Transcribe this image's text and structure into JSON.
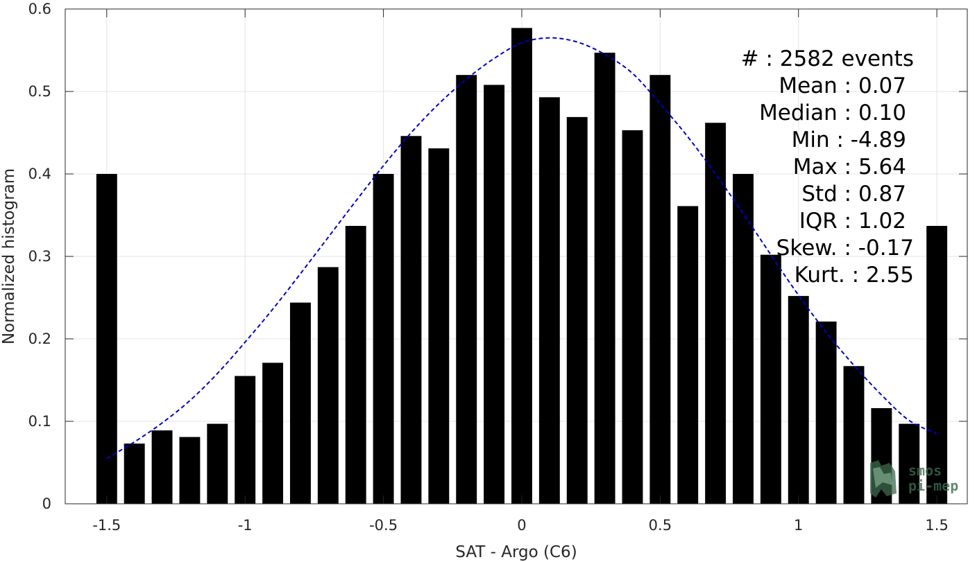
{
  "chart_data": {
    "type": "bar",
    "title": "",
    "xlabel": "SAT - Argo (C6)",
    "ylabel": "Normalized histogram",
    "xlim": [
      -1.65,
      1.61
    ],
    "ylim": [
      0,
      0.6
    ],
    "grid": true,
    "xticks": [
      -1.5,
      -1,
      -0.5,
      0,
      0.5,
      1,
      1.5
    ],
    "xtick_labels": [
      "-1.5",
      "-1",
      "-0.5",
      "0",
      "0.5",
      "1",
      "1.5"
    ],
    "yticks": [
      0,
      0.1,
      0.2,
      0.3,
      0.4,
      0.5,
      0.6
    ],
    "ytick_labels": [
      "0",
      "0.1",
      "0.2",
      "0.3",
      "0.4",
      "0.5",
      "0.6"
    ],
    "bar_color": "#000000",
    "bar_width": 0.075,
    "bars": {
      "x": [
        -1.5,
        -1.4,
        -1.3,
        -1.2,
        -1.1,
        -1.0,
        -0.9,
        -0.8,
        -0.7,
        -0.6,
        -0.5,
        -0.4,
        -0.3,
        -0.2,
        -0.1,
        0.0,
        0.1,
        0.2,
        0.3,
        0.4,
        0.5,
        0.6,
        0.7,
        0.8,
        0.9,
        1.0,
        1.1,
        1.2,
        1.3,
        1.4,
        1.5
      ],
      "values": [
        0.4,
        0.073,
        0.089,
        0.081,
        0.097,
        0.155,
        0.171,
        0.244,
        0.287,
        0.337,
        0.4,
        0.446,
        0.431,
        0.52,
        0.508,
        0.577,
        0.493,
        0.469,
        0.547,
        0.453,
        0.52,
        0.361,
        0.462,
        0.4,
        0.302,
        0.252,
        0.221,
        0.167,
        0.116,
        0.097,
        0.337
      ]
    },
    "fit_curve": {
      "style": "dashed",
      "color": "#0000cc",
      "x": [
        -1.5,
        -1.4,
        -1.3,
        -1.2,
        -1.1,
        -1.0,
        -0.9,
        -0.8,
        -0.7,
        -0.6,
        -0.5,
        -0.4,
        -0.3,
        -0.2,
        -0.1,
        0.0,
        0.1,
        0.2,
        0.3,
        0.4,
        0.5,
        0.6,
        0.7,
        0.8,
        0.9,
        1.0,
        1.1,
        1.2,
        1.3,
        1.4,
        1.5
      ],
      "y": [
        0.055,
        0.075,
        0.098,
        0.125,
        0.158,
        0.196,
        0.236,
        0.279,
        0.323,
        0.367,
        0.41,
        0.45,
        0.485,
        0.515,
        0.54,
        0.559,
        0.565,
        0.56,
        0.545,
        0.522,
        0.485,
        0.445,
        0.4,
        0.352,
        0.302,
        0.253,
        0.208,
        0.168,
        0.132,
        0.101,
        0.085
      ]
    },
    "annotations": [
      "#  : 2582 events",
      "Mean : 0.07",
      "Median : 0.10",
      "Min : -4.89",
      "Max : 5.64",
      "Std : 0.87",
      "IQR : 1.02",
      "Skew. : -0.17",
      "Kurt. : 2.55"
    ]
  },
  "logo": {
    "line1": "smos",
    "line2": "pi-mep"
  }
}
